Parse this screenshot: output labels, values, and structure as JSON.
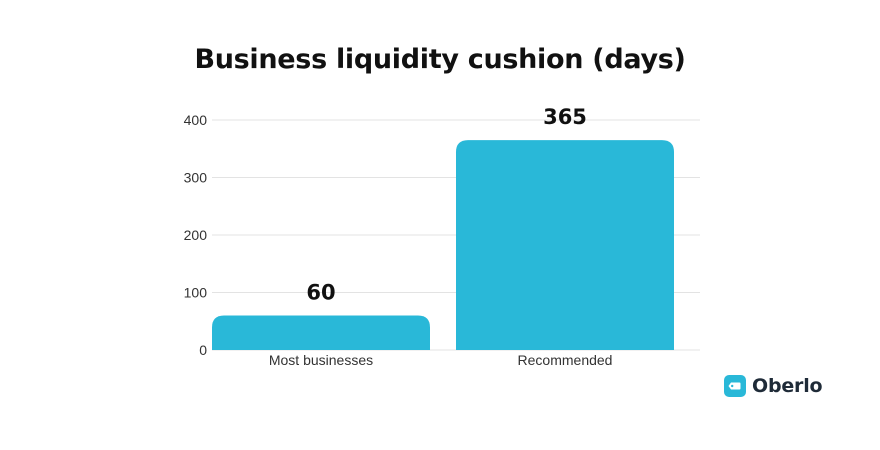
{
  "colors": {
    "bar": "#29b8d8",
    "grid": "#e3e3e3",
    "axis_text": "#333333",
    "brand": "#29b8d8"
  },
  "brand": {
    "name": "Oberlo",
    "icon": "tag-icon"
  },
  "chart_data": {
    "type": "bar",
    "title": "Business liquidity cushion (days)",
    "categories": [
      "Most businesses",
      "Recommended"
    ],
    "values": [
      60,
      365
    ],
    "data_labels": [
      "60",
      "365"
    ],
    "xlabel": "",
    "ylabel": "",
    "ylim": [
      0,
      400
    ],
    "yticks": [
      0,
      100,
      200,
      300,
      400
    ],
    "grid": true,
    "legend": "none"
  }
}
